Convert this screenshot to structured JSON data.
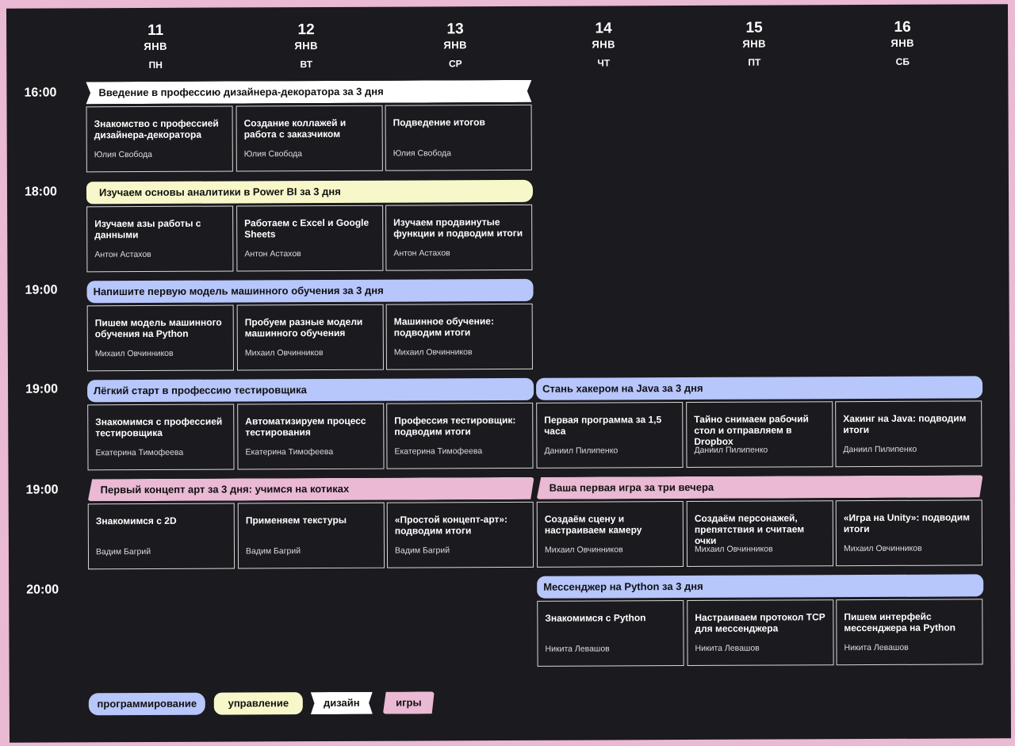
{
  "days": [
    {
      "num": "11",
      "month": "ЯНВ",
      "weekday": "ПН"
    },
    {
      "num": "12",
      "month": "ЯНВ",
      "weekday": "ВТ"
    },
    {
      "num": "13",
      "month": "ЯНВ",
      "weekday": "СР"
    },
    {
      "num": "14",
      "month": "ЯНВ",
      "weekday": "ЧТ"
    },
    {
      "num": "15",
      "month": "ЯНВ",
      "weekday": "ПТ"
    },
    {
      "num": "16",
      "month": "ЯНВ",
      "weekday": "СБ"
    }
  ],
  "rows": [
    {
      "time": "16:00"
    },
    {
      "time": "18:00"
    },
    {
      "time": "19:00"
    },
    {
      "time": "19:00"
    },
    {
      "time": "19:00"
    },
    {
      "time": "20:00"
    }
  ],
  "courses": [
    {
      "title": "Введение в профессию дизайнера-декоратора за 3 дня",
      "category": "design",
      "lessons": [
        {
          "title": "Знакомство с профессией дизайнера-декоратора",
          "teacher": "Юлия Свобода"
        },
        {
          "title": "Создание коллажей и работа с заказчиком",
          "teacher": "Юлия Свобода"
        },
        {
          "title": "Подведение итогов",
          "teacher": "Юлия Свобода"
        }
      ]
    },
    {
      "title": "Изучаем основы аналитики в Power BI за 3 дня",
      "category": "mgmt",
      "lessons": [
        {
          "title": "Изучаем азы работы с данными",
          "teacher": "Антон Астахов"
        },
        {
          "title": "Работаем с Excel и Google Sheets",
          "teacher": "Антон Астахов"
        },
        {
          "title": "Изучаем продвинутые функции и подводим итоги",
          "teacher": "Антон Астахов"
        }
      ]
    },
    {
      "title": "Напишите первую модель машинного обучения за 3 дня",
      "category": "prog",
      "lessons": [
        {
          "title": "Пишем модель машинного обучения на Python",
          "teacher": "Михаил Овчинников"
        },
        {
          "title": "Пробуем разные модели машинного обучения",
          "teacher": "Михаил Овчинников"
        },
        {
          "title": "Машинное обучение: подводим итоги",
          "teacher": "Михаил Овчинников"
        }
      ]
    },
    {
      "title": "Лёгкий старт в профессию тестировщика",
      "category": "prog",
      "lessons": [
        {
          "title": "Знакомимся с профессией тестировщика",
          "teacher": "Екатерина Тимофеева"
        },
        {
          "title": "Автоматизируем процесс тестирования",
          "teacher": "Екатерина Тимофеева"
        },
        {
          "title": "Профессия тестировщик: подводим итоги",
          "teacher": "Екатерина Тимофеева"
        }
      ]
    },
    {
      "title": "Стань хакером на Java за 3 дня",
      "category": "prog",
      "lessons": [
        {
          "title": "Первая программа за 1,5 часа",
          "teacher": "Даниил Пилипенко"
        },
        {
          "title": "Тайно снимаем рабочий стол и отправляем в Dropbox",
          "teacher": "Даниил Пилипенко"
        },
        {
          "title": "Хакинг на Java: подводим итоги",
          "teacher": "Даниил Пилипенко"
        }
      ]
    },
    {
      "title": "Первый концепт арт за 3 дня: учимся на котиках",
      "category": "games",
      "lessons": [
        {
          "title": "Знакомимся с 2D",
          "teacher": "Вадим Багрий"
        },
        {
          "title": "Применяем текстуры",
          "teacher": "Вадим Багрий"
        },
        {
          "title": "«Простой концепт-арт»: подводим итоги",
          "teacher": "Вадим Багрий"
        }
      ]
    },
    {
      "title": "Ваша первая игра за три вечера",
      "category": "games",
      "lessons": [
        {
          "title": "Создаём сцену и настраиваем камеру",
          "teacher": "Михаил Овчинников"
        },
        {
          "title": "Создаём персонажей, препятствия и считаем очки",
          "teacher": "Михаил Овчинников"
        },
        {
          "title": "«Игра на Unity»: подводим итоги",
          "teacher": "Михаил Овчинников"
        }
      ]
    },
    {
      "title": "Мессенджер на Python за 3 дня",
      "category": "prog",
      "lessons": [
        {
          "title": "Знакомимся с Python",
          "teacher": "Никита Левашов"
        },
        {
          "title": "Настраиваем протокол TCP для мессенджера",
          "teacher": "Никита Левашов"
        },
        {
          "title": "Пишем интерфейс мессенджера на Python",
          "teacher": "Никита Левашов"
        }
      ]
    }
  ],
  "legend": {
    "programming": "программирование",
    "management": "управление",
    "design": "дизайн",
    "games": "игры"
  },
  "colors": {
    "background": "#1b1a1f",
    "programming": "#b7c6fb",
    "management": "#f7f8c9",
    "design": "#ffffff",
    "games": "#eab9d3"
  }
}
